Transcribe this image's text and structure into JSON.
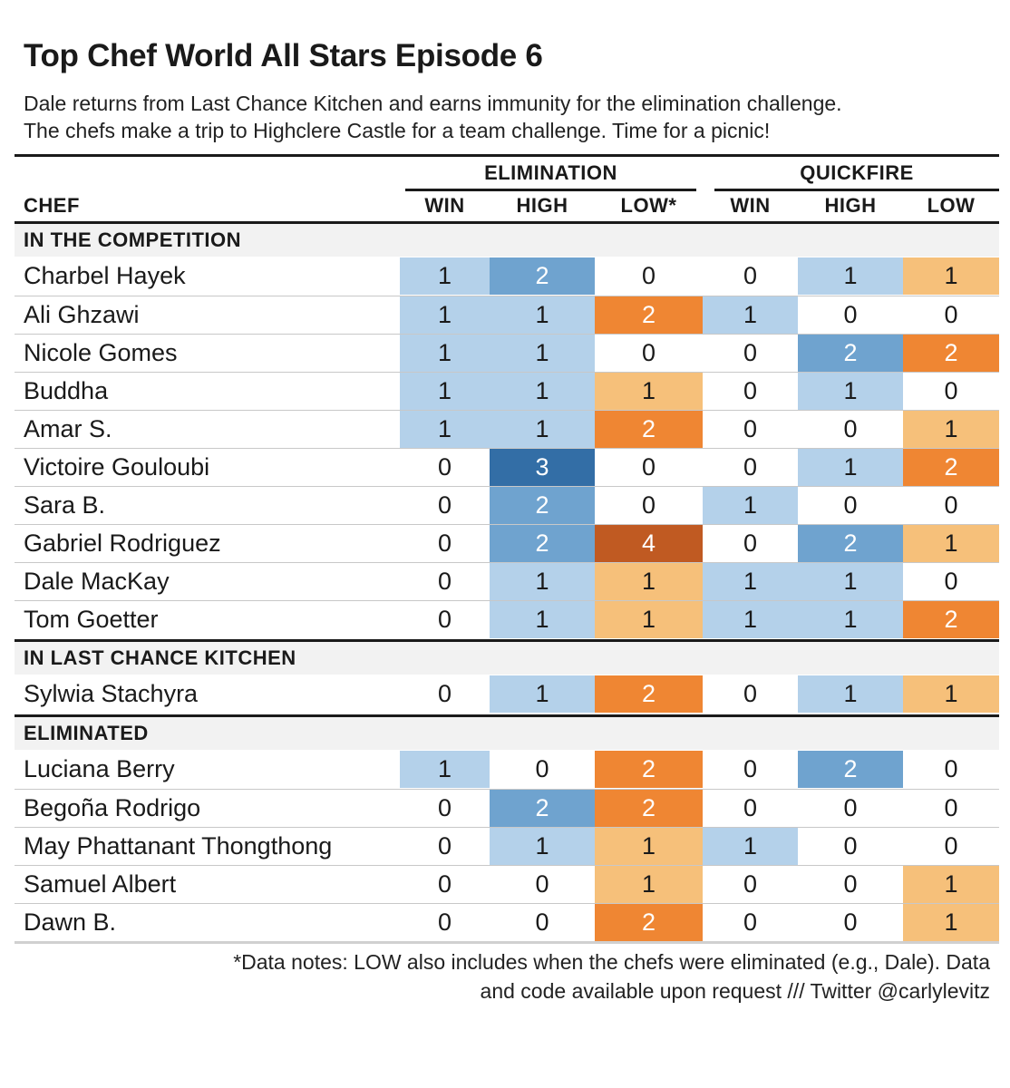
{
  "title": "Top Chef World All Stars Episode 6",
  "subtitle_line1": "Dale returns from Last Chance Kitchen and earns immunity for the elimination challenge.",
  "subtitle_line2": "The chefs make a trip to Highclere Castle for a team challenge. Time for a picnic!",
  "footnote_line1": "*Data notes: LOW also includes when the chefs were eliminated (e.g., Dale). Data",
  "footnote_line2": "and code available upon request /// Twitter @carlylevitz",
  "colors": {
    "blue_1": "#b4d1ea",
    "blue_2": "#6fa3cf",
    "blue_3": "#336ea6",
    "orange_1": "#f6c07a",
    "orange_2": "#ef8633",
    "orange_4": "#c05a22",
    "group_band": "#f2f2f2"
  },
  "chart_data": {
    "type": "table",
    "chef_header": "CHEF",
    "column_groups": [
      {
        "label": "ELIMINATION",
        "columns": [
          "WIN",
          "HIGH",
          "LOW*"
        ]
      },
      {
        "label": "QUICKFIRE",
        "columns": [
          "WIN",
          "HIGH",
          "LOW"
        ]
      }
    ],
    "groups": [
      {
        "label": "IN THE COMPETITION",
        "rows": [
          {
            "chef": "Charbel Hayek",
            "values": [
              1,
              2,
              0,
              0,
              1,
              1
            ]
          },
          {
            "chef": "Ali Ghzawi",
            "values": [
              1,
              1,
              2,
              1,
              0,
              0
            ]
          },
          {
            "chef": "Nicole Gomes",
            "values": [
              1,
              1,
              0,
              0,
              2,
              2
            ]
          },
          {
            "chef": "Buddha",
            "values": [
              1,
              1,
              1,
              0,
              1,
              0
            ]
          },
          {
            "chef": "Amar S.",
            "values": [
              1,
              1,
              2,
              0,
              0,
              1
            ]
          },
          {
            "chef": "Victoire Gouloubi",
            "values": [
              0,
              3,
              0,
              0,
              1,
              2
            ]
          },
          {
            "chef": "Sara B.",
            "values": [
              0,
              2,
              0,
              1,
              0,
              0
            ]
          },
          {
            "chef": "Gabriel Rodriguez",
            "values": [
              0,
              2,
              4,
              0,
              2,
              1
            ]
          },
          {
            "chef": "Dale MacKay",
            "values": [
              0,
              1,
              1,
              1,
              1,
              0
            ]
          },
          {
            "chef": "Tom Goetter",
            "values": [
              0,
              1,
              1,
              1,
              1,
              2
            ]
          }
        ]
      },
      {
        "label": "IN LAST CHANCE KITCHEN",
        "rows": [
          {
            "chef": "Sylwia Stachyra",
            "values": [
              0,
              1,
              2,
              0,
              1,
              1
            ]
          }
        ]
      },
      {
        "label": "ELIMINATED",
        "rows": [
          {
            "chef": "Luciana Berry",
            "values": [
              1,
              0,
              2,
              0,
              2,
              0
            ]
          },
          {
            "chef": "Begoña Rodrigo",
            "values": [
              0,
              2,
              2,
              0,
              0,
              0
            ]
          },
          {
            "chef": "May Phattanant Thongthong",
            "values": [
              0,
              1,
              1,
              1,
              0,
              0
            ]
          },
          {
            "chef": "Samuel Albert",
            "values": [
              0,
              0,
              1,
              0,
              0,
              1
            ]
          },
          {
            "chef": "Dawn B.",
            "values": [
              0,
              0,
              2,
              0,
              0,
              1
            ]
          }
        ]
      }
    ]
  }
}
